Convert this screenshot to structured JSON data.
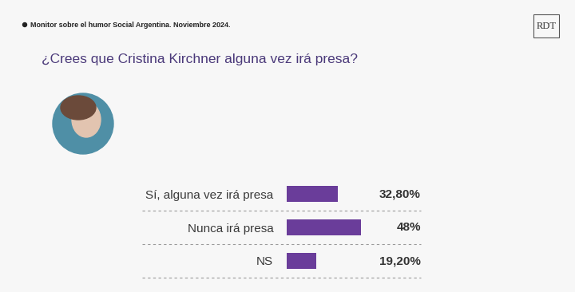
{
  "chart_data": {
    "type": "bar",
    "orientation": "horizontal",
    "subtitle": "Monitor sobre el humor Social Argentina. Noviembre 2024.",
    "title": "¿Crees que Cristina Kirchner alguna vez irá presa?",
    "annotations": [
      "RDT"
    ],
    "categories": [
      "Sí, alguna vez irá presa",
      "Nunca irá presa",
      "NS"
    ],
    "values": [
      32.8,
      48,
      19.2
    ],
    "value_labels": [
      "32,80%",
      "48%",
      "19,20%"
    ],
    "color": "#6a3d9a",
    "data_labels": true,
    "tick_labels": "y"
  }
}
